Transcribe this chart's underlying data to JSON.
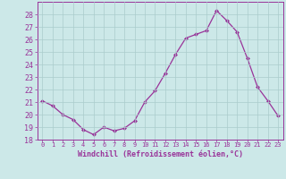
{
  "hours": [
    0,
    1,
    2,
    3,
    4,
    5,
    6,
    7,
    8,
    9,
    10,
    11,
    12,
    13,
    14,
    15,
    16,
    17,
    18,
    19,
    20,
    21,
    22,
    23
  ],
  "values": [
    21.1,
    20.7,
    20.0,
    19.6,
    18.8,
    18.4,
    19.0,
    18.7,
    18.9,
    19.5,
    21.0,
    21.9,
    23.3,
    24.8,
    26.1,
    26.4,
    26.7,
    28.3,
    27.5,
    26.6,
    24.5,
    22.2,
    21.1,
    19.9
  ],
  "line_color": "#993399",
  "marker": "D",
  "marker_size": 2.0,
  "line_width": 0.9,
  "bg_color": "#cce8e8",
  "grid_color": "#aacccc",
  "xlabel": "Windchill (Refroidissement éolien,°C)",
  "xlabel_color": "#993399",
  "tick_color": "#993399",
  "ylim": [
    18,
    29
  ],
  "yticks": [
    18,
    19,
    20,
    21,
    22,
    23,
    24,
    25,
    26,
    27,
    28
  ],
  "xticks": [
    0,
    1,
    2,
    3,
    4,
    5,
    6,
    7,
    8,
    9,
    10,
    11,
    12,
    13,
    14,
    15,
    16,
    17,
    18,
    19,
    20,
    21,
    22,
    23
  ],
  "spine_color": "#993399"
}
